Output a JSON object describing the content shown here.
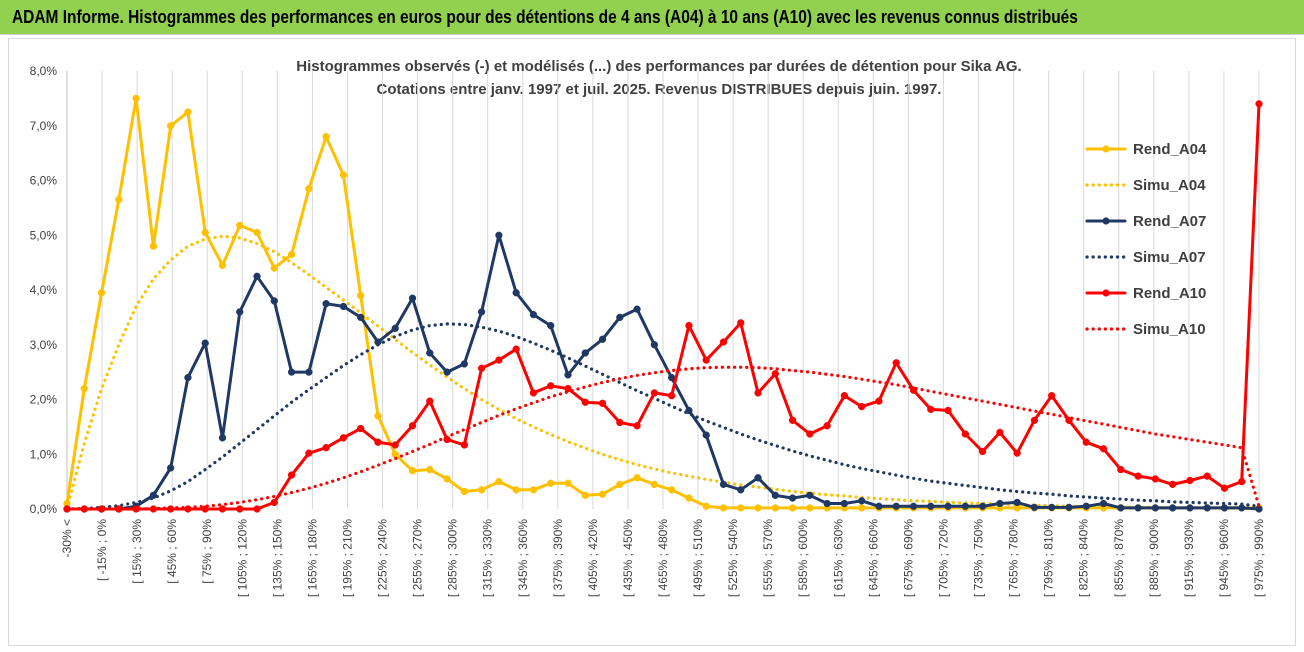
{
  "banner": {
    "title": "ADAM Informe. Histogrammes des performances en euros pour des détentions de 4 ans (A04) à 10 ans (A10) avec les revenus connus distribués",
    "background": "#92d050"
  },
  "chart_data": {
    "type": "line",
    "title_line1": "Histogrammes observés (-)  et modélisés (...) des performances par durées de détention pour Sika AG.",
    "title_line2": "Cotations entre janv. 1997 et juil. 2025. Revenus DISTRIBUES depuis juin. 1997.",
    "ylim": [
      0,
      8
    ],
    "y_ticks": [
      "0,0%",
      "1,0%",
      "2,0%",
      "3,0%",
      "4,0%",
      "5,0%",
      "6,0%",
      "7,0%",
      "8,0%"
    ],
    "y_unit": "percent",
    "grid": "vertical-lines",
    "legend_position": "right",
    "x_labels": [
      "-30% <",
      "[ -15% ; 0%",
      "[ 15% ; 30%",
      "[ 45% ; 60%",
      "[ 75% ; 90%",
      "[ 105% ; 120%",
      "[ 135% ; 150%",
      "[ 165% ; 180%",
      "[ 195% ; 210%",
      "[ 225% ; 240%",
      "[ 255% ; 270%",
      "[ 285% ; 300%",
      "[ 315% ; 330%",
      "[ 345% ; 360%",
      "[ 375% ; 390%",
      "[ 405% ; 420%",
      "[ 435% ; 450%",
      "[ 465% ; 480%",
      "[ 495% ; 510%",
      "[ 525% ; 540%",
      "[ 555% ; 570%",
      "[ 585% ; 600%",
      "[ 615% ; 630%",
      "[ 645% ; 660%",
      "[ 675% ; 690%",
      "[ 705% ; 720%",
      "[ 735% ; 750%",
      "[ 765% ; 780%",
      "[ 795% ; 810%",
      "[ 825% ; 840%",
      "[ 855% ; 870%",
      "[ 885% ; 900%",
      "[ 915% ; 930%",
      "[ 945% ; 960%",
      "[ 975% ; 990%"
    ],
    "series": [
      {
        "name": "Rend_A04",
        "color": "#ffc000",
        "style": "solid",
        "values": [
          0.1,
          2.2,
          3.95,
          5.65,
          7.5,
          4.8,
          7.0,
          7.25,
          5.05,
          4.45,
          5.18,
          5.05,
          4.4,
          4.65,
          5.85,
          6.8,
          6.1,
          3.9,
          1.7,
          1.0,
          0.7,
          0.72,
          0.55,
          0.32,
          0.35,
          0.5,
          0.35,
          0.35,
          0.47,
          0.47,
          0.25,
          0.27,
          0.45,
          0.57,
          0.45,
          0.35,
          0.2,
          0.05,
          0.02,
          0.02,
          0.02,
          0.02,
          0.02,
          0.02,
          0.02,
          0.02,
          0.02,
          0.02,
          0.02,
          0.02,
          0.02,
          0.02,
          0.02,
          0.02,
          0.02,
          0.02,
          0.02,
          0.02,
          0.02,
          0.02,
          0.02,
          0.02,
          0.02,
          0.02,
          0.02,
          0.02,
          0.02,
          0.02,
          0.02,
          0.02
        ]
      },
      {
        "name": "Simu_A04",
        "color": "#ffc000",
        "style": "dotted",
        "values": [
          0.0,
          1.2,
          2.2,
          3.0,
          3.7,
          4.2,
          4.55,
          4.8,
          4.93,
          4.98,
          4.95,
          4.85,
          4.7,
          4.5,
          4.28,
          4.05,
          3.82,
          3.58,
          3.34,
          3.1,
          2.86,
          2.63,
          2.41,
          2.2,
          2.0,
          1.82,
          1.65,
          1.5,
          1.36,
          1.23,
          1.11,
          1.0,
          0.9,
          0.81,
          0.73,
          0.66,
          0.6,
          0.54,
          0.49,
          0.44,
          0.4,
          0.36,
          0.32,
          0.29,
          0.26,
          0.24,
          0.21,
          0.19,
          0.17,
          0.15,
          0.14,
          0.12,
          0.11,
          0.1,
          0.09,
          0.08,
          0.07,
          0.06,
          0.05,
          0.05,
          0.04,
          0.04,
          0.03,
          0.03,
          0.02,
          0.02,
          0.02,
          0.02,
          0.01,
          0.01
        ]
      },
      {
        "name": "Rend_A07",
        "color": "#1f3864",
        "style": "solid",
        "values": [
          0,
          0,
          0,
          0,
          0.05,
          0.25,
          0.75,
          2.4,
          3.03,
          1.3,
          3.6,
          4.25,
          3.8,
          2.5,
          2.5,
          3.75,
          3.7,
          3.5,
          3.05,
          3.3,
          3.85,
          2.85,
          2.5,
          2.65,
          3.6,
          5.0,
          3.95,
          3.55,
          3.35,
          2.45,
          2.85,
          3.1,
          3.5,
          3.65,
          3.0,
          2.4,
          1.8,
          1.35,
          0.45,
          0.35,
          0.57,
          0.25,
          0.2,
          0.25,
          0.1,
          0.1,
          0.15,
          0.05,
          0.05,
          0.05,
          0.05,
          0.05,
          0.05,
          0.05,
          0.1,
          0.12,
          0.03,
          0.03,
          0.03,
          0.05,
          0.1,
          0.02,
          0.02,
          0.02,
          0.02,
          0.02,
          0.02,
          0.02,
          0.02,
          0.0
        ]
      },
      {
        "name": "Simu_A07",
        "color": "#1f3864",
        "style": "dotted",
        "values": [
          0.0,
          0.01,
          0.03,
          0.06,
          0.12,
          0.2,
          0.33,
          0.5,
          0.72,
          0.95,
          1.2,
          1.45,
          1.7,
          1.95,
          2.18,
          2.4,
          2.62,
          2.82,
          3.0,
          3.15,
          3.27,
          3.35,
          3.38,
          3.37,
          3.32,
          3.25,
          3.15,
          3.03,
          2.9,
          2.76,
          2.61,
          2.46,
          2.31,
          2.16,
          2.02,
          1.88,
          1.74,
          1.61,
          1.49,
          1.37,
          1.26,
          1.16,
          1.06,
          0.97,
          0.89,
          0.81,
          0.74,
          0.68,
          0.62,
          0.56,
          0.51,
          0.47,
          0.43,
          0.39,
          0.35,
          0.32,
          0.29,
          0.27,
          0.24,
          0.22,
          0.2,
          0.18,
          0.16,
          0.15,
          0.13,
          0.12,
          0.11,
          0.1,
          0.09,
          0.05
        ]
      },
      {
        "name": "Rend_A10",
        "color": "#ff0000",
        "style": "solid",
        "values": [
          0,
          0,
          0,
          0,
          0,
          0,
          0,
          0,
          0,
          0,
          0,
          0,
          0.12,
          0.62,
          1.02,
          1.12,
          1.3,
          1.47,
          1.22,
          1.17,
          1.52,
          1.97,
          1.27,
          1.17,
          2.57,
          2.72,
          2.92,
          2.12,
          2.25,
          2.2,
          1.95,
          1.93,
          1.58,
          1.52,
          2.12,
          2.07,
          3.35,
          2.72,
          3.05,
          3.4,
          2.12,
          2.47,
          1.62,
          1.37,
          1.52,
          2.07,
          1.87,
          1.97,
          2.67,
          2.17,
          1.82,
          1.8,
          1.37,
          1.05,
          1.4,
          1.02,
          1.62,
          2.07,
          1.62,
          1.22,
          1.1,
          0.72,
          0.6,
          0.55,
          0.45,
          0.52,
          0.6,
          0.38,
          0.5,
          7.4
        ]
      },
      {
        "name": "Simu_A10",
        "color": "#ff0000",
        "style": "dotted",
        "values": [
          0.0,
          0.0,
          0.0,
          0.0,
          0.0,
          0.01,
          0.02,
          0.03,
          0.05,
          0.08,
          0.12,
          0.17,
          0.23,
          0.3,
          0.38,
          0.47,
          0.57,
          0.68,
          0.8,
          0.92,
          1.05,
          1.18,
          1.32,
          1.45,
          1.58,
          1.71,
          1.83,
          1.94,
          2.05,
          2.14,
          2.23,
          2.31,
          2.38,
          2.44,
          2.49,
          2.53,
          2.56,
          2.58,
          2.59,
          2.59,
          2.58,
          2.56,
          2.53,
          2.5,
          2.46,
          2.42,
          2.37,
          2.32,
          2.27,
          2.21,
          2.15,
          2.09,
          2.03,
          1.97,
          1.91,
          1.85,
          1.79,
          1.73,
          1.67,
          1.61,
          1.55,
          1.49,
          1.43,
          1.37,
          1.32,
          1.27,
          1.22,
          1.17,
          1.12,
          0.05
        ]
      }
    ]
  }
}
